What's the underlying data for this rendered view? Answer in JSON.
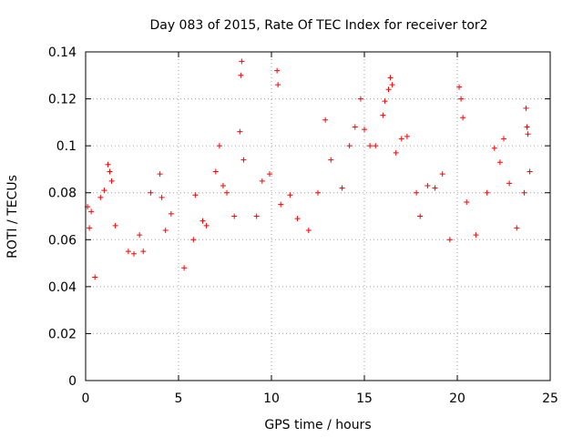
{
  "chart_data": {
    "type": "scatter",
    "title": "Day 083 of 2015, Rate Of TEC Index for receiver tor2",
    "xlabel": "GPS time / hours",
    "ylabel": "ROTI / TECUs",
    "xlim": [
      0,
      25
    ],
    "ylim": [
      0,
      0.14
    ],
    "x_ticks": [
      0,
      5,
      10,
      15,
      20,
      25
    ],
    "x_tick_labels": [
      "0",
      "5",
      "10",
      "15",
      "20",
      "25"
    ],
    "y_ticks": [
      0,
      0.02,
      0.04,
      0.06,
      0.08,
      0.1,
      0.12,
      0.14
    ],
    "y_tick_labels": [
      "0",
      "0.02",
      "0.04",
      "0.06",
      "0.08",
      "0.1",
      "0.12",
      "0.14"
    ],
    "grid": true,
    "marker": "plus",
    "color": "#ff0000",
    "series": [
      {
        "values": [
          [
            0.1,
            0.074
          ],
          [
            0.2,
            0.065
          ],
          [
            0.3,
            0.072
          ],
          [
            0.5,
            0.044
          ],
          [
            0.8,
            0.078
          ],
          [
            1.0,
            0.081
          ],
          [
            1.2,
            0.092
          ],
          [
            1.3,
            0.089
          ],
          [
            1.4,
            0.085
          ],
          [
            1.6,
            0.066
          ],
          [
            2.3,
            0.055
          ],
          [
            2.6,
            0.054
          ],
          [
            2.9,
            0.062
          ],
          [
            3.1,
            0.055
          ],
          [
            3.5,
            0.08
          ],
          [
            4.0,
            0.088
          ],
          [
            4.1,
            0.078
          ],
          [
            4.3,
            0.064
          ],
          [
            4.6,
            0.071
          ],
          [
            5.3,
            0.048
          ],
          [
            5.8,
            0.06
          ],
          [
            5.9,
            0.079
          ],
          [
            6.3,
            0.068
          ],
          [
            6.5,
            0.066
          ],
          [
            7.0,
            0.089
          ],
          [
            7.2,
            0.1
          ],
          [
            7.4,
            0.083
          ],
          [
            7.6,
            0.08
          ],
          [
            8.0,
            0.07
          ],
          [
            8.3,
            0.106
          ],
          [
            8.35,
            0.13
          ],
          [
            8.4,
            0.136
          ],
          [
            8.5,
            0.094
          ],
          [
            9.2,
            0.07
          ],
          [
            9.5,
            0.085
          ],
          [
            9.9,
            0.088
          ],
          [
            10.3,
            0.132
          ],
          [
            10.35,
            0.126
          ],
          [
            10.5,
            0.075
          ],
          [
            11.0,
            0.079
          ],
          [
            11.4,
            0.069
          ],
          [
            12.0,
            0.064
          ],
          [
            12.5,
            0.08
          ],
          [
            12.9,
            0.111
          ],
          [
            13.2,
            0.094
          ],
          [
            13.8,
            0.082
          ],
          [
            14.2,
            0.1
          ],
          [
            14.5,
            0.108
          ],
          [
            14.8,
            0.12
          ],
          [
            15.0,
            0.107
          ],
          [
            15.3,
            0.1
          ],
          [
            15.6,
            0.1
          ],
          [
            16.0,
            0.113
          ],
          [
            16.1,
            0.119
          ],
          [
            16.3,
            0.124
          ],
          [
            16.4,
            0.129
          ],
          [
            16.5,
            0.126
          ],
          [
            16.7,
            0.097
          ],
          [
            17.0,
            0.103
          ],
          [
            17.3,
            0.104
          ],
          [
            17.8,
            0.08
          ],
          [
            18.0,
            0.07
          ],
          [
            18.4,
            0.083
          ],
          [
            18.8,
            0.082
          ],
          [
            19.2,
            0.088
          ],
          [
            19.6,
            0.06
          ],
          [
            20.1,
            0.125
          ],
          [
            20.2,
            0.12
          ],
          [
            20.3,
            0.112
          ],
          [
            20.5,
            0.076
          ],
          [
            21.0,
            0.062
          ],
          [
            21.6,
            0.08
          ],
          [
            22.0,
            0.099
          ],
          [
            22.3,
            0.093
          ],
          [
            22.5,
            0.103
          ],
          [
            22.8,
            0.084
          ],
          [
            23.2,
            0.065
          ],
          [
            23.6,
            0.08
          ],
          [
            23.7,
            0.116
          ],
          [
            23.75,
            0.108
          ],
          [
            23.8,
            0.105
          ],
          [
            23.9,
            0.089
          ]
        ]
      }
    ]
  }
}
